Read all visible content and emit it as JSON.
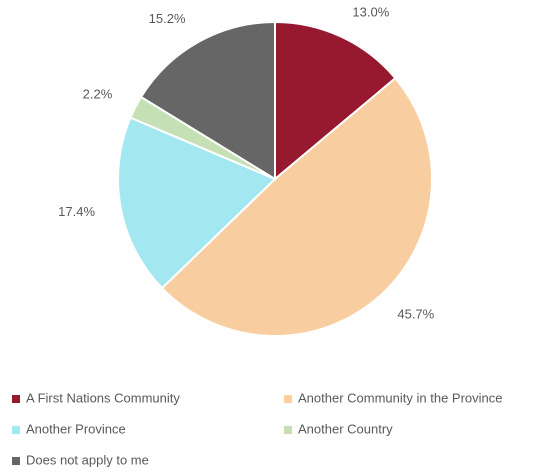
{
  "chart_data": {
    "type": "pie",
    "categories": [
      "A First Nations Community",
      "Another Community in the Province",
      "Another Province",
      "Another Country",
      "Does not apply to me"
    ],
    "values": [
      13.0,
      45.7,
      17.4,
      2.2,
      15.2
    ],
    "value_labels": [
      "13.0%",
      "45.7%",
      "17.4%",
      "2.2%",
      "15.2%"
    ],
    "colors": [
      "#97192f",
      "#f8cda0",
      "#a3e8f0",
      "#c5e0b4",
      "#666666"
    ],
    "legend": "bottom"
  }
}
